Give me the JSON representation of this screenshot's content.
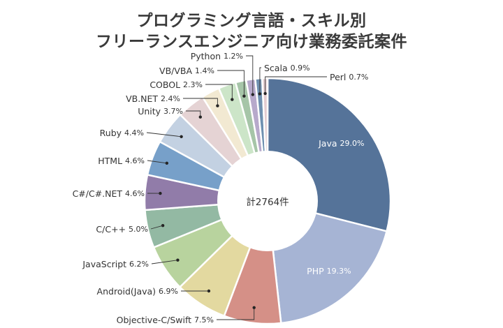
{
  "chart_data": {
    "type": "pie",
    "variant": "donut",
    "title_line1": "プログラミング言語・スキル別",
    "title_line2": "フリーランスエンジニア向け業務委託案件",
    "center_label": "計2764件",
    "slices": [
      {
        "label": "Java",
        "value": 29.0,
        "pct_text": "29.0%",
        "color": "#557399"
      },
      {
        "label": "PHP",
        "value": 19.3,
        "pct_text": "19.3%",
        "color": "#a6b4d4"
      },
      {
        "label": "Objective-C/Swift",
        "value": 7.5,
        "pct_text": "7.5%",
        "color": "#d59087"
      },
      {
        "label": "Android(Java)",
        "value": 6.9,
        "pct_text": "6.9%",
        "color": "#e3d9a0"
      },
      {
        "label": "JavaScript",
        "value": 6.2,
        "pct_text": "6.2%",
        "color": "#b8d39e"
      },
      {
        "label": "C/C++",
        "value": 5.0,
        "pct_text": "5.0%",
        "color": "#93b9a3"
      },
      {
        "label": "C#/C#.NET",
        "value": 4.6,
        "pct_text": "4.6%",
        "color": "#917ca9"
      },
      {
        "label": "HTML",
        "value": 4.6,
        "pct_text": "4.6%",
        "color": "#77a0c9"
      },
      {
        "label": "Ruby",
        "value": 4.4,
        "pct_text": "4.4%",
        "color": "#c3d1e2"
      },
      {
        "label": "Unity",
        "value": 3.7,
        "pct_text": "3.7%",
        "color": "#e5d3d4"
      },
      {
        "label": "VB.NET",
        "value": 2.4,
        "pct_text": "2.4%",
        "color": "#f2e9d2"
      },
      {
        "label": "COBOL",
        "value": 2.3,
        "pct_text": "2.3%",
        "color": "#cce5c8"
      },
      {
        "label": "VB/VBA",
        "value": 1.4,
        "pct_text": "1.4%",
        "color": "#a6c5a8"
      },
      {
        "label": "Python",
        "value": 1.2,
        "pct_text": "1.2%",
        "color": "#b7a9cb"
      },
      {
        "label": "Scala",
        "value": 0.9,
        "pct_text": "0.9%",
        "color": "#6f90b0"
      },
      {
        "label": "Perl",
        "value": 0.7,
        "pct_text": "0.7%",
        "color": "#e3ccd0"
      }
    ]
  }
}
